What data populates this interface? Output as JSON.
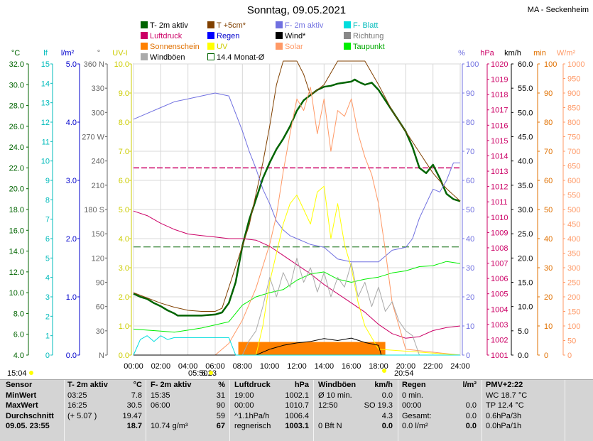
{
  "header": {
    "title": "Sonntag, 09.05.2021",
    "station": "MA - Seckenheim"
  },
  "colors": {
    "temp2m": "#006400",
    "temp5cm": "#804000",
    "feuchte": "#7070e0",
    "blatt": "#00dddd",
    "druck": "#cc0066",
    "regen": "#0000ff",
    "wind": "#000000",
    "richtung": "#888888",
    "sonne": "#ff8000",
    "uv": "#ffff00",
    "solar": "#ff9966",
    "taupunkt": "#00ee00",
    "boeen": "#aaaaaa",
    "monat": "#006400"
  },
  "legend": [
    {
      "label": "T- 2m aktiv",
      "color": "#006400"
    },
    {
      "label": "T +5cm*",
      "color": "#804000"
    },
    {
      "label": "F- 2m aktiv",
      "color": "#7070e0"
    },
    {
      "label": "F- Blatt",
      "color": "#00dddd"
    },
    {
      "label": "Luftdruck",
      "color": "#cc0066"
    },
    {
      "label": "Regen",
      "color": "#0000ff"
    },
    {
      "label": "Wind*",
      "color": "#000000"
    },
    {
      "label": "Richtung",
      "color": "#888888"
    },
    {
      "label": "Sonnenschein",
      "color": "#ff8000"
    },
    {
      "label": "UV",
      "color": "#ffff00"
    },
    {
      "label": "Solar",
      "color": "#ff9966"
    },
    {
      "label": "Taupunkt",
      "color": "#00ee00"
    },
    {
      "label": "Windböen",
      "color": "#aaaaaa"
    },
    {
      "label": "14.4 Monat-Ø",
      "color": "#006400"
    }
  ],
  "axes_units": {
    "temp": "°C",
    "blatt": "lf",
    "regen": "l/m²",
    "richtung": "°",
    "uv": "UV-I",
    "feuchte": "%",
    "druck": "hPa",
    "wind": "km/h",
    "sonne": "min",
    "solar": "W/m²"
  },
  "chart_data": {
    "type": "line",
    "title": "Sonntag, 09.05.2021",
    "x_ticks": [
      "00:00",
      "02:00",
      "04:00",
      "06:00",
      "08:00",
      "10:00",
      "12:00",
      "14:00",
      "16:00",
      "18:00",
      "20:00",
      "22:00",
      "24:00"
    ],
    "x_range": [
      0,
      24
    ],
    "axes": {
      "temp": {
        "unit": "°C",
        "range": [
          4,
          32
        ],
        "ticks": [
          "4.0",
          "6.0",
          "8.0",
          "10.0",
          "12.0",
          "14.0",
          "16.0",
          "18.0",
          "20.0",
          "22.0",
          "24.0",
          "26.0",
          "28.0",
          "30.0",
          "32.0"
        ]
      },
      "blatt": {
        "unit": "lf",
        "range": [
          0,
          15
        ],
        "ticks": [
          "0",
          "1",
          "2",
          "3",
          "4",
          "5",
          "6",
          "7",
          "8",
          "9",
          "10",
          "11",
          "12",
          "13",
          "14",
          "15"
        ]
      },
      "regen": {
        "unit": "l/m²",
        "range": [
          0,
          5
        ],
        "ticks": [
          "0.0",
          "1.0",
          "2.0",
          "3.0",
          "4.0",
          "5.0"
        ]
      },
      "richtung": {
        "unit": "°",
        "range": [
          0,
          360
        ],
        "ticks": [
          "N",
          "30",
          "60",
          "90",
          "120",
          "150",
          "180 S",
          "210",
          "240",
          "270 W",
          "300",
          "330",
          "360 N"
        ]
      },
      "uv": {
        "unit": "UV-I",
        "range": [
          0,
          10
        ],
        "ticks": [
          "0.0",
          "1.0",
          "2.0",
          "3.0",
          "4.0",
          "5.0",
          "6.0",
          "7.0",
          "8.0",
          "9.0",
          "10.0"
        ]
      },
      "feuchte": {
        "unit": "%",
        "range": [
          0,
          100
        ],
        "ticks": [
          "0",
          "10",
          "20",
          "30",
          "40",
          "50",
          "60",
          "70",
          "80",
          "90",
          "100"
        ]
      },
      "druck": {
        "unit": "hPa",
        "range": [
          1001,
          1020
        ],
        "ticks": [
          "1001",
          "1002",
          "1003",
          "1004",
          "1005",
          "1006",
          "1007",
          "1008",
          "1009",
          "1010",
          "1011",
          "1012",
          "1013",
          "1014",
          "1015",
          "1016",
          "1017",
          "1018",
          "1019",
          "1020"
        ]
      },
      "wind": {
        "unit": "km/h",
        "range": [
          0,
          60
        ],
        "ticks": [
          "0.0",
          "5.0",
          "10.0",
          "15.0",
          "20.0",
          "25.0",
          "30.0",
          "35.0",
          "40.0",
          "45.0",
          "50.0",
          "55.0",
          "60.0"
        ]
      },
      "sonne": {
        "unit": "min",
        "range": [
          0,
          100
        ],
        "ticks": [
          "0",
          "10",
          "20",
          "30",
          "40",
          "50",
          "60",
          "70",
          "80",
          "90",
          "100"
        ]
      },
      "solar": {
        "unit": "W/m²",
        "range": [
          0,
          1000
        ],
        "ticks": [
          "0",
          "50",
          "100",
          "150",
          "200",
          "250",
          "300",
          "350",
          "400",
          "450",
          "500",
          "550",
          "600",
          "650",
          "700",
          "750",
          "800",
          "850",
          "900",
          "950",
          "1000"
        ]
      }
    },
    "series": [
      {
        "name": "T- 2m aktiv",
        "axis": "temp",
        "color": "#006400",
        "width": 2.5,
        "x": [
          0,
          0.5,
          1,
          1.5,
          2,
          2.5,
          3,
          3.25,
          4,
          5,
          6,
          6.5,
          7,
          7.5,
          8,
          8.5,
          9,
          9.5,
          10,
          10.5,
          11,
          11.5,
          12,
          12.5,
          13,
          13.5,
          14,
          14.5,
          15,
          15.5,
          16,
          16.25,
          16.5,
          17,
          17.5,
          18,
          18.5,
          19,
          19.5,
          20,
          20.5,
          21,
          21.5,
          22,
          22.5,
          23,
          23.5,
          24
        ],
        "y": [
          9.9,
          9.6,
          9.4,
          9.0,
          8.7,
          8.3,
          8.0,
          7.8,
          7.8,
          7.8,
          7.9,
          8.1,
          9.0,
          11.0,
          14.5,
          17.0,
          19.0,
          21.0,
          22.5,
          23.8,
          24.8,
          26.0,
          27.5,
          28.5,
          29.0,
          29.5,
          29.8,
          29.9,
          30.1,
          30.2,
          30.3,
          30.5,
          30.3,
          30.0,
          30.2,
          29.5,
          28.5,
          27.5,
          26.5,
          25.5,
          24.0,
          22.0,
          21.5,
          22.3,
          21.0,
          19.5,
          19.0,
          18.8
        ]
      },
      {
        "name": "T +5cm*",
        "axis": "temp",
        "color": "#804000",
        "width": 1,
        "x": [
          0,
          1,
          2,
          3,
          4,
          5,
          6,
          6.5,
          7,
          7.5,
          8,
          8.5,
          9,
          9.5,
          10,
          10.5,
          11,
          11.5,
          12,
          12.5,
          13,
          14,
          15,
          16,
          17,
          18,
          19,
          20,
          21,
          22,
          23,
          24
        ],
        "y": [
          10.0,
          9.5,
          9.0,
          8.6,
          8.3,
          8.2,
          8.2,
          8.5,
          10.5,
          12.5,
          14.5,
          16.5,
          19.5,
          22.5,
          26.0,
          30.0,
          33.0,
          35.0,
          33.5,
          31.0,
          29.0,
          30.0,
          34.0,
          36.0,
          34.0,
          30.0,
          27.5,
          25.5,
          23.5,
          21.5,
          20.0,
          18.8
        ]
      },
      {
        "name": "F- 2m aktiv",
        "axis": "feuchte",
        "color": "#7070e0",
        "width": 1,
        "x": [
          0,
          0.5,
          1,
          2,
          3,
          4,
          5,
          6,
          7,
          7.5,
          8,
          8.5,
          9,
          9.5,
          10,
          10.5,
          11,
          11.5,
          12,
          13,
          14,
          15,
          16,
          17,
          18,
          18.5,
          19,
          20,
          20.5,
          21,
          21.5,
          22,
          22.5,
          23,
          23.5,
          24
        ],
        "y": [
          81,
          82,
          83,
          85,
          87,
          88,
          89,
          90,
          89,
          83,
          77,
          70,
          64,
          57,
          52,
          46,
          43,
          41,
          40,
          38,
          37,
          33,
          32,
          32,
          32,
          34,
          36,
          37,
          40,
          47,
          52,
          57,
          56,
          60,
          66,
          66
        ]
      },
      {
        "name": "Luftdruck",
        "axis": "druck",
        "color": "#cc0066",
        "width": 1,
        "x": [
          0,
          1,
          2,
          3,
          4,
          5,
          6,
          7,
          8,
          9,
          10,
          11,
          12,
          13,
          14,
          15,
          16,
          17,
          18,
          19,
          20,
          21,
          22,
          23,
          24
        ],
        "y": [
          1010.4,
          1010.1,
          1009.6,
          1009.2,
          1008.9,
          1008.8,
          1008.7,
          1008.6,
          1008.6,
          1008.5,
          1008.1,
          1007.5,
          1006.9,
          1006.3,
          1005.6,
          1005.0,
          1004.4,
          1003.8,
          1003.0,
          1002.4,
          1002.1,
          1002.2,
          1002.6,
          1002.8,
          1002.9
        ]
      },
      {
        "name": "Taupunkt",
        "axis": "temp",
        "color": "#00ee00",
        "width": 1,
        "x": [
          0,
          1,
          2,
          3,
          4,
          5,
          6,
          7,
          8,
          9,
          10,
          11,
          12,
          13,
          14,
          15,
          16,
          17,
          18,
          19,
          20,
          21,
          22,
          23,
          24
        ],
        "y": [
          6.5,
          6.4,
          6.3,
          6.2,
          6.4,
          6.6,
          6.9,
          7.2,
          8.8,
          9.6,
          10.0,
          10.3,
          11.2,
          11.8,
          12.0,
          11.3,
          11.0,
          11.3,
          11.5,
          11.9,
          12.1,
          12.5,
          12.6,
          13.0,
          12.8
        ]
      },
      {
        "name": "Solar",
        "axis": "solar",
        "color": "#ff9966",
        "width": 1,
        "x": [
          0,
          6,
          7,
          8,
          9,
          10,
          10.5,
          11,
          11.5,
          12,
          12.5,
          13,
          13.5,
          14,
          14.5,
          15,
          15.5,
          16,
          16.5,
          17,
          17.5,
          18,
          18.5,
          19,
          20,
          24
        ],
        "y": [
          0,
          0,
          40,
          120,
          230,
          380,
          480,
          630,
          760,
          880,
          840,
          920,
          760,
          880,
          700,
          840,
          820,
          880,
          760,
          680,
          620,
          520,
          360,
          180,
          20,
          0
        ]
      },
      {
        "name": "UV",
        "axis": "uv",
        "color": "#ffff00",
        "width": 1,
        "x": [
          0,
          9,
          9.5,
          10,
          10.5,
          11,
          11.5,
          12,
          12.5,
          13,
          13.5,
          14,
          14.5,
          15,
          15.5,
          16,
          16.5,
          17,
          18,
          24
        ],
        "y": [
          0,
          0,
          1.0,
          2.5,
          3.5,
          4.5,
          5.2,
          5.5,
          5.0,
          4.5,
          5.6,
          5.8,
          4.0,
          5.2,
          3.8,
          3.0,
          1.8,
          1.0,
          0.2,
          0
        ]
      },
      {
        "name": "Windböen",
        "axis": "wind",
        "color": "#aaaaaa",
        "width": 1,
        "x": [
          0,
          6,
          7,
          8,
          8.5,
          9,
          9.5,
          10,
          10.5,
          11,
          11.5,
          12,
          12.5,
          13,
          13.5,
          14,
          14.5,
          15,
          15.5,
          16,
          16.5,
          17,
          17.5,
          18,
          18.5,
          19,
          19.5,
          20,
          20.5,
          21,
          24
        ],
        "y": [
          0,
          0,
          0,
          0,
          3,
          5,
          10,
          16,
          12,
          17,
          14,
          20,
          15,
          18,
          13,
          17,
          12,
          16,
          14,
          19,
          12,
          15,
          10,
          14,
          9,
          11,
          7,
          5,
          4,
          0,
          0
        ]
      },
      {
        "name": "Wind*",
        "axis": "wind",
        "color": "#000000",
        "width": 1,
        "x": [
          0,
          9,
          10,
          11,
          12,
          13,
          14,
          15,
          16,
          17,
          18,
          18.2,
          24
        ],
        "y": [
          0,
          0,
          1.2,
          2.0,
          2.5,
          2.8,
          3.4,
          3.0,
          3.5,
          2.6,
          2.0,
          0,
          0
        ]
      },
      {
        "name": "F- Blatt",
        "axis": "blatt",
        "color": "#00dddd",
        "width": 1,
        "x": [
          0,
          0.5,
          1,
          1.5,
          2,
          2.5,
          3,
          4,
          5,
          6,
          7,
          7.5,
          24
        ],
        "y": [
          0,
          0.8,
          1.0,
          0.7,
          1.0,
          0.8,
          0.9,
          0.9,
          0.9,
          0.9,
          0.9,
          0,
          0
        ]
      }
    ],
    "sunshine_minutes": {
      "name": "Sonnenschein",
      "axis": "sonne",
      "start": 7.7,
      "end": 18.5,
      "level": 4.5,
      "color": "#ff8000"
    },
    "pressure_reference": {
      "name": "14.4 Monat-Ø",
      "axis": "temp",
      "value": 22.0,
      "color": "#cc0066"
    },
    "month_avg": {
      "name": "14.4 Monat-Ø",
      "axis": "temp",
      "value": 14.4,
      "color": "#006400"
    },
    "sun_times": {
      "sunrise": "05:50",
      "sunset": "20:54",
      "noon": "6:23",
      "start": "15:04"
    }
  },
  "summary": {
    "rows": [
      "Sensor",
      "MinWert",
      "MaxWert",
      "Durchschnitt",
      "09.05. 23:55"
    ],
    "t2m": {
      "head": "T- 2m aktiv",
      "unit": "°C",
      "rows": [
        [
          "03:25",
          "7.8"
        ],
        [
          "16:25",
          "30.5"
        ],
        [
          "(+ 5.07 )",
          "19.47"
        ],
        [
          "",
          "18.7"
        ]
      ]
    },
    "f2m": {
      "head": "F- 2m aktiv",
      "unit": "%",
      "rows": [
        [
          "15:35",
          "31"
        ],
        [
          "06:00",
          "90"
        ],
        [
          "",
          "59"
        ],
        [
          "10.74 g/m³",
          "67"
        ]
      ]
    },
    "druck": {
      "head": "Luftdruck",
      "unit": "hPa",
      "rows": [
        [
          "19:00",
          "1002.1"
        ],
        [
          "00:00",
          "1010.7"
        ],
        [
          "^1.1hPa/h",
          "1006.4"
        ],
        [
          "regnerisch",
          "1003.1"
        ]
      ]
    },
    "wind": {
      "head": "Windböen",
      "unit": "km/h",
      "rows": [
        [
          "Ø 10 min.",
          "0.0"
        ],
        [
          "12:50",
          "SO 19.3"
        ],
        [
          "",
          "4.3"
        ],
        [
          "0 Bft N",
          "0.0"
        ]
      ]
    },
    "regen": {
      "head": "Regen",
      "unit": "l/m²",
      "rows": [
        [
          "0 min.",
          ""
        ],
        [
          "00:00",
          "0.0"
        ],
        [
          "Gesamt:",
          "0.0"
        ],
        [
          "0.0 l/m²",
          "0.0"
        ]
      ]
    },
    "pmv": {
      "head": "PMV+2:22",
      "rows": [
        "WC 18.7 °C",
        "TP 12.4 °C",
        "0.6hPa/3h",
        "0.0hPa/1h"
      ]
    }
  }
}
